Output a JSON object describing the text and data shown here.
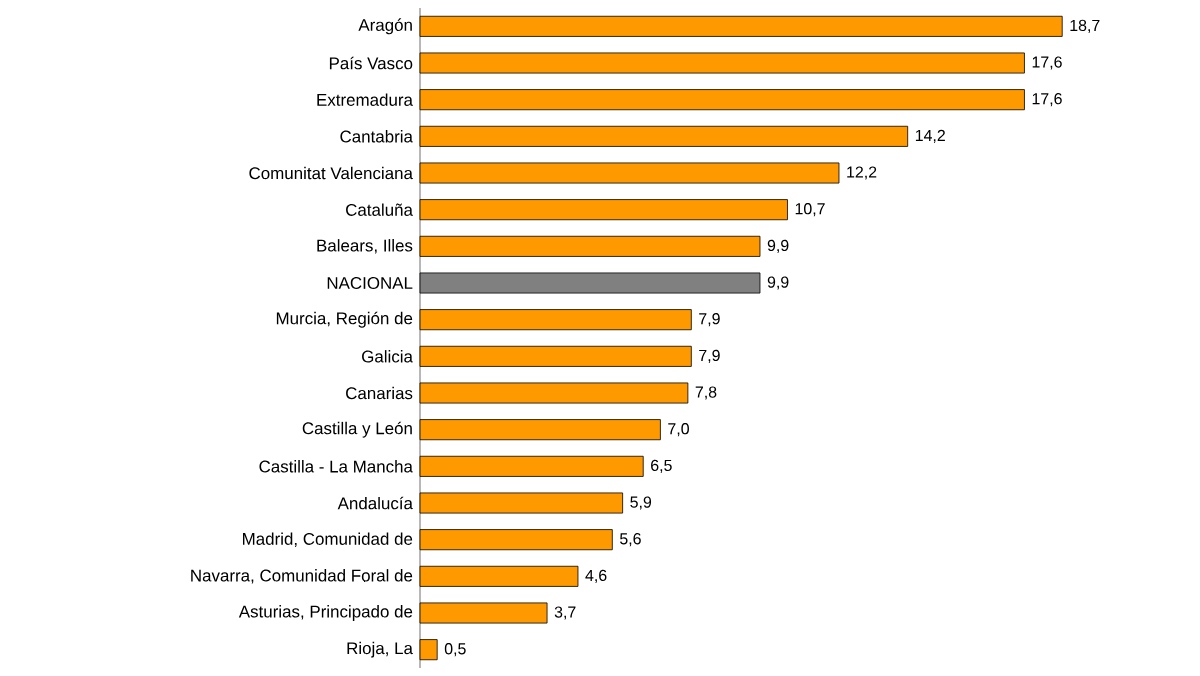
{
  "chart_data": {
    "type": "bar",
    "orientation": "horizontal",
    "categories": [
      "Aragón",
      "País Vasco",
      "Extremadura",
      "Cantabria",
      "Comunitat Valenciana",
      "Cataluña",
      "Balears, Illes",
      "NACIONAL",
      "Murcia, Región de",
      "Galicia",
      "Canarias",
      "Castilla y León",
      "Castilla - La Mancha",
      "Andalucía",
      "Madrid, Comunidad de",
      "Navarra, Comunidad Foral de",
      "Asturias, Principado de",
      "Rioja, La"
    ],
    "values": [
      18.7,
      17.6,
      17.6,
      14.2,
      12.2,
      10.7,
      9.9,
      9.9,
      7.9,
      7.9,
      7.8,
      7.0,
      6.5,
      5.9,
      5.6,
      4.6,
      3.7,
      0.5
    ],
    "value_labels": [
      "18,7",
      "17,6",
      "17,6",
      "14,2",
      "12,2",
      "10,7",
      "9,9",
      "9,9",
      "7,9",
      "7,9",
      "7,8",
      "7,0",
      "6,5",
      "5,9",
      "5,6",
      "4,6",
      "3,7",
      "0,5"
    ],
    "colors": [
      "#ff9900",
      "#ff9900",
      "#ff9900",
      "#ff9900",
      "#ff9900",
      "#ff9900",
      "#ff9900",
      "#808080",
      "#ff9900",
      "#ff9900",
      "#ff9900",
      "#ff9900",
      "#ff9900",
      "#ff9900",
      "#ff9900",
      "#ff9900",
      "#ff9900",
      "#ff9900"
    ]
  }
}
